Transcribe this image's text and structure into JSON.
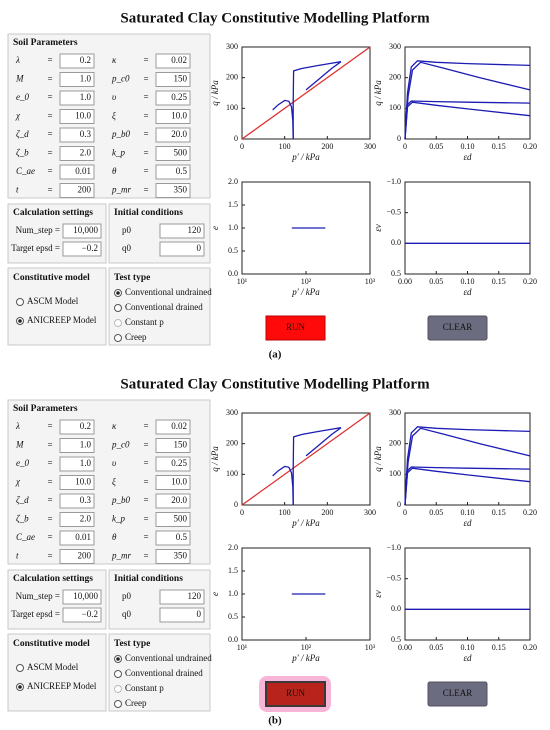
{
  "title": "Saturated Clay Constitutive Modelling Platform",
  "panels": [
    {
      "caption": "(a)",
      "run_pressed": false
    },
    {
      "caption": "(b)",
      "run_pressed": true
    }
  ],
  "soil_parameters": {
    "heading": "Soil Parameters",
    "separator": "=",
    "rows": [
      [
        {
          "label": "λ",
          "value": "0.2"
        },
        {
          "label": "κ",
          "value": "0.02"
        }
      ],
      [
        {
          "label": "M",
          "value": "1.0"
        },
        {
          "label": "p_c0",
          "value": "150",
          "disabled": true
        }
      ],
      [
        {
          "label": "e_0",
          "value": "1.0"
        },
        {
          "label": "υ",
          "value": "0.25"
        }
      ],
      [
        {
          "label": "χ",
          "value": "10.0"
        },
        {
          "label": "ξ",
          "value": "10.0"
        }
      ],
      [
        {
          "label": "ζ_d",
          "value": "0.3"
        },
        {
          "label": "p_b0",
          "value": "20.0"
        }
      ],
      [
        {
          "label": "ζ_b",
          "value": "2.0"
        },
        {
          "label": "k_p",
          "value": "500",
          "disabled": true
        }
      ],
      [
        {
          "label": "C_ae",
          "value": "0.01"
        },
        {
          "label": "θ",
          "value": "0.5"
        }
      ],
      [
        {
          "label": "t",
          "value": "200"
        },
        {
          "label": "p_mr",
          "value": "350"
        }
      ]
    ]
  },
  "calculation_settings": {
    "heading": "Calculation settings",
    "rows": [
      {
        "label": "Num_step =",
        "value": "10,000"
      },
      {
        "label": "Target epsd =",
        "value": "−0.2"
      }
    ]
  },
  "initial_conditions": {
    "heading": "Initial conditions",
    "rows": [
      {
        "label": "p0",
        "value": "120"
      },
      {
        "label": "q0",
        "value": "0"
      }
    ]
  },
  "constitutive_model": {
    "heading": "Constitutive model",
    "options": [
      {
        "label": "ASCM Model",
        "selected": false
      },
      {
        "label": "ANICREEP Model",
        "selected": true
      }
    ]
  },
  "test_type": {
    "heading": "Test type",
    "options": [
      {
        "label": "Conventional undrained",
        "selected": true
      },
      {
        "label": "Conventional drained",
        "selected": false
      },
      {
        "label": "Constant p",
        "selected": false,
        "disabled": true
      },
      {
        "label": "Creep",
        "selected": false
      }
    ]
  },
  "buttons": {
    "run": "RUN",
    "clear": "CLEAR"
  },
  "plots": [
    {
      "type": "line",
      "xlabel": "p′ / kPa",
      "ylabel": "q / kPa",
      "xlim": [
        0,
        300
      ],
      "ylim": [
        0,
        300
      ],
      "xticks": [
        0,
        100,
        200,
        300
      ],
      "yticks": [
        0,
        100,
        200,
        300
      ],
      "series": [
        {
          "color": "#e03030",
          "x": [
            0,
            300
          ],
          "y": [
            0,
            300
          ]
        },
        {
          "color": "#1c1cb4",
          "x": [
            120,
            119,
            116,
            110,
            100,
            85,
            72
          ],
          "y": [
            0,
            60,
            105,
            123,
            126,
            112,
            95
          ]
        },
        {
          "color": "#1c1cb4",
          "x": [
            120,
            120,
            121,
            140,
            180,
            215,
            232
          ],
          "y": [
            0,
            120,
            222,
            230,
            240,
            248,
            252
          ]
        },
        {
          "color": "#1c1cb4",
          "x": [
            150,
            180,
            210,
            232
          ],
          "y": [
            160,
            195,
            230,
            252
          ]
        }
      ]
    },
    {
      "type": "line",
      "xlabel": "εd",
      "ylabel": "q / kPa",
      "xlim": [
        0,
        0.2
      ],
      "ylim": [
        0,
        300
      ],
      "xticks": [
        0,
        0.05,
        {
          "value": 0.1,
          "label": "0.10"
        },
        0.15,
        {
          "value": 0.2,
          "label": "0.20"
        }
      ],
      "yticks": [
        0,
        100,
        200,
        300
      ],
      "series": [
        {
          "color": "#1c1cb4",
          "x": [
            0,
            0.004,
            0.01,
            0.02,
            0.05,
            0.1,
            0.2
          ],
          "y": [
            0,
            150,
            235,
            255,
            250,
            246,
            240
          ]
        },
        {
          "color": "#1c1cb4",
          "x": [
            0,
            0.005,
            0.012,
            0.025,
            0.06,
            0.12,
            0.2
          ],
          "y": [
            0,
            140,
            225,
            250,
            232,
            200,
            160
          ]
        },
        {
          "color": "#1c1cb4",
          "x": [
            0,
            0.003,
            0.01,
            0.05,
            0.1,
            0.2
          ],
          "y": [
            0,
            110,
            124,
            122,
            120,
            117
          ]
        },
        {
          "color": "#1c1cb4",
          "x": [
            0,
            0.004,
            0.012,
            0.05,
            0.1,
            0.2
          ],
          "y": [
            0,
            105,
            120,
            110,
            98,
            76
          ]
        }
      ]
    },
    {
      "type": "line",
      "xlabel": "p′ / kPa",
      "ylabel": "e",
      "log_x": true,
      "xlim": [
        10,
        1000
      ],
      "ylim": [
        0,
        2
      ],
      "xticks": [
        {
          "value": 10,
          "label": "10¹"
        },
        {
          "value": 100,
          "label": "10²"
        },
        {
          "value": 1000,
          "label": "10³"
        }
      ],
      "yticks": [
        {
          "value": 0,
          "label": "0.0"
        },
        {
          "value": 0.5,
          "label": "0.5"
        },
        {
          "value": 1,
          "label": "1.0"
        },
        {
          "value": 1.5,
          "label": "1.5"
        },
        {
          "value": 2,
          "label": "2.0"
        }
      ],
      "series": [
        {
          "color": "#1c1cb4",
          "x": [
            60,
            200
          ],
          "y": [
            1,
            1
          ]
        }
      ]
    },
    {
      "type": "line",
      "xlabel": "εd",
      "ylabel": "εv",
      "y_inverted": true,
      "xlim": [
        0,
        0.2
      ],
      "ylim": [
        -1,
        0.5
      ],
      "xticks": [
        {
          "value": 0,
          "label": "0.00"
        },
        0.05,
        {
          "value": 0.1,
          "label": "0.10"
        },
        0.15,
        {
          "value": 0.2,
          "label": "0.20"
        }
      ],
      "yticks": [
        {
          "value": -1,
          "label": "−1.0"
        },
        {
          "value": -0.5,
          "label": "−0.5"
        },
        {
          "value": 0,
          "label": "0.0"
        },
        {
          "value": 0.5,
          "label": "0.5"
        }
      ],
      "series": [
        {
          "color": "#1c1cb4",
          "x": [
            0,
            0.2
          ],
          "y": [
            0,
            0
          ]
        }
      ]
    }
  ]
}
